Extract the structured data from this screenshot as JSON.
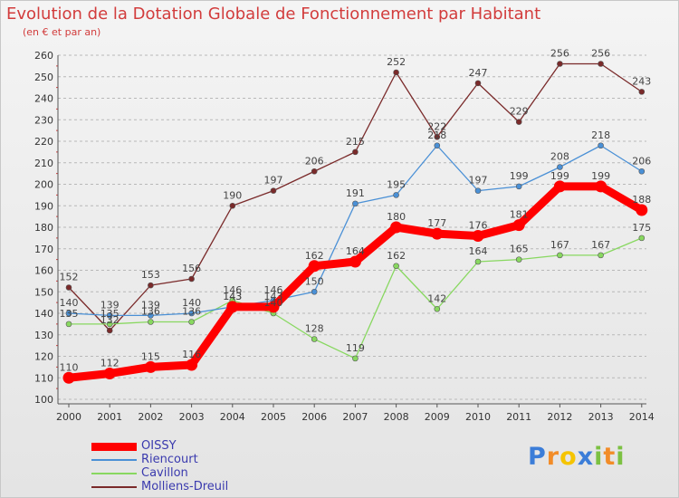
{
  "chart_data": {
    "type": "line",
    "title": "Evolution de la Dotation Globale de Fonctionnement par Habitant",
    "subtitle": "(en € et par an)",
    "xlabel": "",
    "ylabel": "",
    "categories": [
      "2000",
      "2001",
      "2002",
      "2003",
      "2004",
      "2005",
      "2006",
      "2007",
      "2008",
      "2009",
      "2010",
      "2011",
      "2012",
      "2013",
      "2014"
    ],
    "ylim": [
      100,
      260
    ],
    "yticks": [
      100,
      110,
      120,
      130,
      140,
      150,
      160,
      170,
      180,
      190,
      200,
      210,
      220,
      230,
      240,
      250,
      260
    ],
    "grid": "horizontal dashed",
    "series": [
      {
        "name": "OISSY",
        "color": "#ff0000",
        "values": [
          110,
          112,
          115,
          116,
          143,
          143,
          162,
          164,
          180,
          177,
          176,
          181,
          199,
          199,
          188
        ],
        "labels": [
          "110",
          "112",
          "115",
          "116",
          "143",
          "143",
          "162",
          "164",
          "180",
          "177",
          "176",
          "181",
          "199",
          "199",
          "188"
        ]
      },
      {
        "name": "Riencourt",
        "color": "#4a90d6",
        "values": [
          140,
          139,
          139,
          140,
          143,
          146,
          150,
          191,
          195,
          218,
          197,
          199,
          208,
          218,
          206
        ],
        "labels": [
          "140",
          "139",
          "139",
          "140",
          "143",
          "146",
          "150",
          "191",
          "195",
          "218",
          "197",
          "199",
          "208",
          "218",
          "206"
        ]
      },
      {
        "name": "Cavillon",
        "color": "#88d860",
        "values": [
          135,
          135,
          136,
          136,
          146,
          140,
          128,
          119,
          162,
          142,
          164,
          165,
          167,
          167,
          175
        ],
        "labels": [
          "135",
          "135",
          "136",
          "136",
          "146",
          "140",
          "128",
          "119",
          "162",
          "142",
          "164",
          "165",
          "167",
          "167",
          "175"
        ]
      },
      {
        "name": "Molliens-Dreuil",
        "color": "#7a2a2a",
        "values": [
          152,
          132,
          153,
          156,
          190,
          197,
          206,
          215,
          252,
          222,
          247,
          229,
          256,
          256,
          243
        ],
        "labels": [
          "152",
          "132",
          "153",
          "156",
          "190",
          "197",
          "206",
          "215",
          "252",
          "222",
          "247",
          "229",
          "256",
          "256",
          "243"
        ]
      }
    ]
  },
  "logo": {
    "letters": [
      "P",
      "r",
      "o",
      "x",
      "i",
      "t",
      "i"
    ],
    "colors": [
      "#3b7dd8",
      "#f28c28",
      "#f5c400",
      "#3b7dd8",
      "#7cc142",
      "#f28c28",
      "#7cc142"
    ]
  }
}
